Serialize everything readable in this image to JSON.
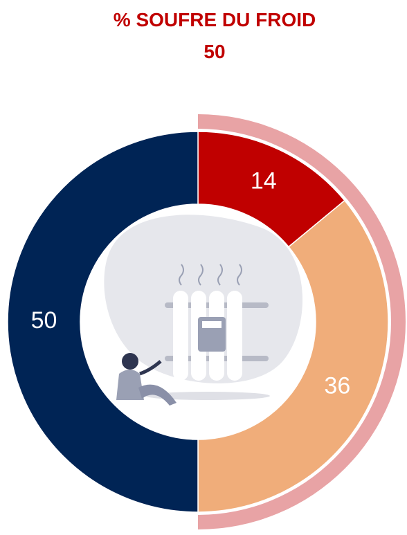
{
  "chart_data": {
    "type": "donut",
    "title": "% SOUFRE DU FROID",
    "subtitle": "50",
    "values": [
      14,
      36,
      50
    ],
    "colors": [
      "#c00000",
      "#f0ad7a",
      "#002455"
    ],
    "outer_ring": {
      "values": [
        50,
        50
      ],
      "colors": [
        "#e8a3a5",
        "none"
      ]
    }
  }
}
